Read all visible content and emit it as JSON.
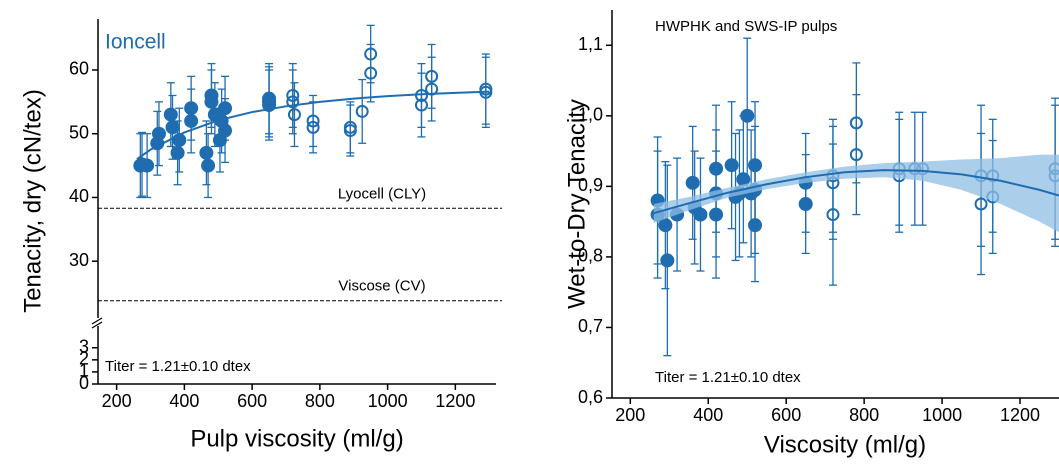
{
  "chart_data": [
    {
      "type": "scatter",
      "y_label": "Tenacity, dry (cN/tex)",
      "x_label": "Pulp viscosity (ml/g)",
      "annotations": [
        "Ioncell",
        "Titer = 1.21±0.10 dtex"
      ],
      "xlim": [
        145,
        1320
      ],
      "xticks": [
        200,
        400,
        600,
        800,
        1000,
        1200
      ],
      "ylim": [
        22.5,
        68
      ],
      "yticks": [
        30,
        40,
        50,
        60
      ],
      "lower_ylim": [
        0,
        4.8
      ],
      "lower_yticks": [
        0,
        1,
        2,
        3
      ],
      "reference_lines": [
        {
          "value": 38.3,
          "label": "Lyocell (CLY)"
        },
        {
          "value": 23.8,
          "label": "Viscose (CV)"
        }
      ],
      "series": [
        {
          "marker": "filled",
          "color": "#1f6db0",
          "x": [
            270,
            275,
            290,
            320,
            325,
            360,
            365,
            380,
            385,
            420,
            420,
            465,
            470,
            480,
            480,
            490,
            505,
            510,
            520,
            520,
            650,
            650,
            650
          ],
          "values": [
            45,
            45.2,
            45,
            48.5,
            50,
            53,
            51,
            47,
            49,
            52,
            54,
            47,
            45,
            56,
            55,
            53,
            49,
            52,
            50.5,
            54,
            55.5,
            55,
            54.5
          ],
          "errors": [
            5,
            5,
            5,
            5,
            5,
            5,
            5,
            5,
            5,
            5,
            5,
            5,
            5,
            5,
            5,
            5,
            5,
            5,
            5,
            5,
            5.5,
            5.5,
            5.5
          ]
        },
        {
          "marker": "open",
          "color": "#1f6db0",
          "x": [
            720,
            720,
            725,
            780,
            780,
            890,
            890,
            925,
            950,
            950,
            1100,
            1100,
            1130,
            1130,
            1290,
            1290
          ],
          "values": [
            56,
            55,
            53,
            51,
            52,
            51,
            50.5,
            53.5,
            62.5,
            59.5,
            56,
            54.5,
            59,
            57,
            57,
            56.5
          ],
          "errors": [
            5,
            5,
            5,
            4,
            4,
            4,
            4,
            5,
            4.5,
            4.5,
            5,
            5,
            5,
            5,
            5.5,
            5.5
          ]
        },
        {
          "style": "line",
          "color": "#1f6db0",
          "x": [
            260,
            300,
            400,
            500,
            600,
            700,
            800,
            900,
            1000,
            1100,
            1200,
            1300
          ],
          "values": [
            46,
            47.5,
            50.2,
            52.1,
            53.4,
            54.3,
            55,
            55.5,
            55.9,
            56.2,
            56.4,
            56.6
          ]
        }
      ]
    },
    {
      "type": "scatter",
      "y_label": "Wet-to-Dry Tenacity",
      "x_label": "Viscosity (ml/g)",
      "annotations": [
        "HWPHK and SWS-IP pulps",
        "Titer = 1.21±0.10 dtex"
      ],
      "xlim": [
        153,
        1300
      ],
      "xticks": [
        200,
        400,
        600,
        800,
        1000,
        1200
      ],
      "ylim": [
        0.6,
        1.15
      ],
      "yticks": [
        {
          "value": 0.6,
          "label": "0,6"
        },
        {
          "value": 0.7,
          "label": "0,7"
        },
        {
          "value": 0.8,
          "label": "0,8"
        },
        {
          "value": 0.9,
          "label": "0,9"
        },
        {
          "value": 1.0,
          "label": "1,0"
        },
        {
          "value": 1.1,
          "label": "1,1"
        }
      ],
      "series": [
        {
          "marker": "filled",
          "color": "#1f6db0",
          "x": [
            270,
            270,
            290,
            295,
            320,
            360,
            365,
            380,
            420,
            420,
            420,
            460,
            470,
            480,
            490,
            500,
            510,
            520,
            520,
            520,
            650,
            650
          ],
          "values": [
            0.88,
            0.86,
            0.845,
            0.795,
            0.86,
            0.905,
            0.87,
            0.86,
            0.925,
            0.89,
            0.86,
            0.93,
            0.885,
            0.89,
            0.91,
            1.0,
            0.89,
            0.93,
            0.895,
            0.845,
            0.905,
            0.875
          ],
          "errors": [
            0.09,
            0.09,
            0.09,
            0.135,
            0.08,
            0.08,
            0.08,
            0.08,
            0.09,
            0.09,
            0.09,
            0.09,
            0.09,
            0.09,
            0.09,
            0.11,
            0.09,
            0.09,
            0.09,
            0.08,
            0.07,
            0.07
          ]
        },
        {
          "marker": "open",
          "color": "#1f6db0",
          "x": [
            720,
            720,
            720,
            780,
            780,
            890,
            890,
            930,
            950,
            1100,
            1100,
            1130,
            1130,
            1290,
            1290
          ],
          "values": [
            0.915,
            0.905,
            0.86,
            0.99,
            0.945,
            0.925,
            0.915,
            0.925,
            0.925,
            0.915,
            0.875,
            0.915,
            0.885,
            0.925,
            0.915
          ],
          "errors": [
            0.08,
            0.08,
            0.1,
            0.085,
            0.085,
            0.08,
            0.08,
            0.08,
            0.08,
            0.1,
            0.1,
            0.08,
            0.08,
            0.1,
            0.1
          ]
        },
        {
          "style": "line",
          "color": "#1f6db0",
          "band_color": "#8fbde3",
          "x": [
            260,
            350,
            450,
            550,
            650,
            750,
            850,
            950,
            1050,
            1150,
            1250,
            1300
          ],
          "values": [
            0.862,
            0.876,
            0.891,
            0.903,
            0.913,
            0.92,
            0.923,
            0.922,
            0.917,
            0.908,
            0.895,
            0.887
          ],
          "band_upper": [
            0.875,
            0.885,
            0.898,
            0.91,
            0.92,
            0.928,
            0.933,
            0.935,
            0.938,
            0.94,
            0.945,
            0.945
          ],
          "band_lower": [
            0.848,
            0.866,
            0.884,
            0.896,
            0.905,
            0.911,
            0.913,
            0.908,
            0.895,
            0.875,
            0.85,
            0.835
          ]
        }
      ]
    }
  ]
}
